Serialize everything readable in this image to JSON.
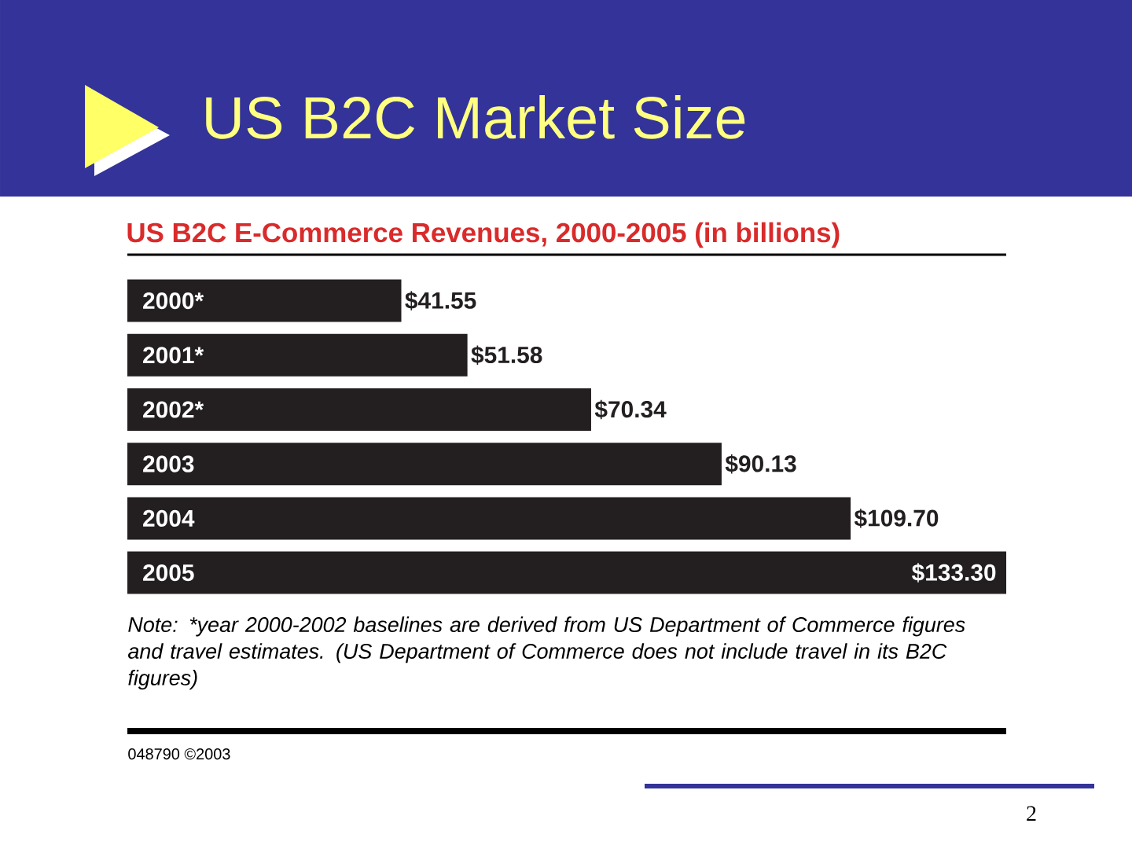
{
  "chart_data": {
    "type": "bar",
    "orientation": "horizontal",
    "title": "US B2C Market Size",
    "subtitle": "US B2C E-Commerce Revenues, 2000-2005 (in billions)",
    "categories": [
      "2000*",
      "2001*",
      "2002*",
      "2003",
      "2004",
      "2005"
    ],
    "values": [
      41.55,
      51.58,
      70.34,
      90.13,
      109.7,
      133.3
    ],
    "value_labels": [
      "$41.55",
      "$51.58",
      "$70.34",
      "$90.13",
      "$109.70",
      "$133.30"
    ],
    "color": "#231f20",
    "annotations": [
      "Note: *year 2000-2002 baselines are derived from US Department of Commerce figures and travel estimates. (US Department of Commerce does not include travel in its B2C figures)",
      "048790 ©2003",
      "2"
    ]
  }
}
